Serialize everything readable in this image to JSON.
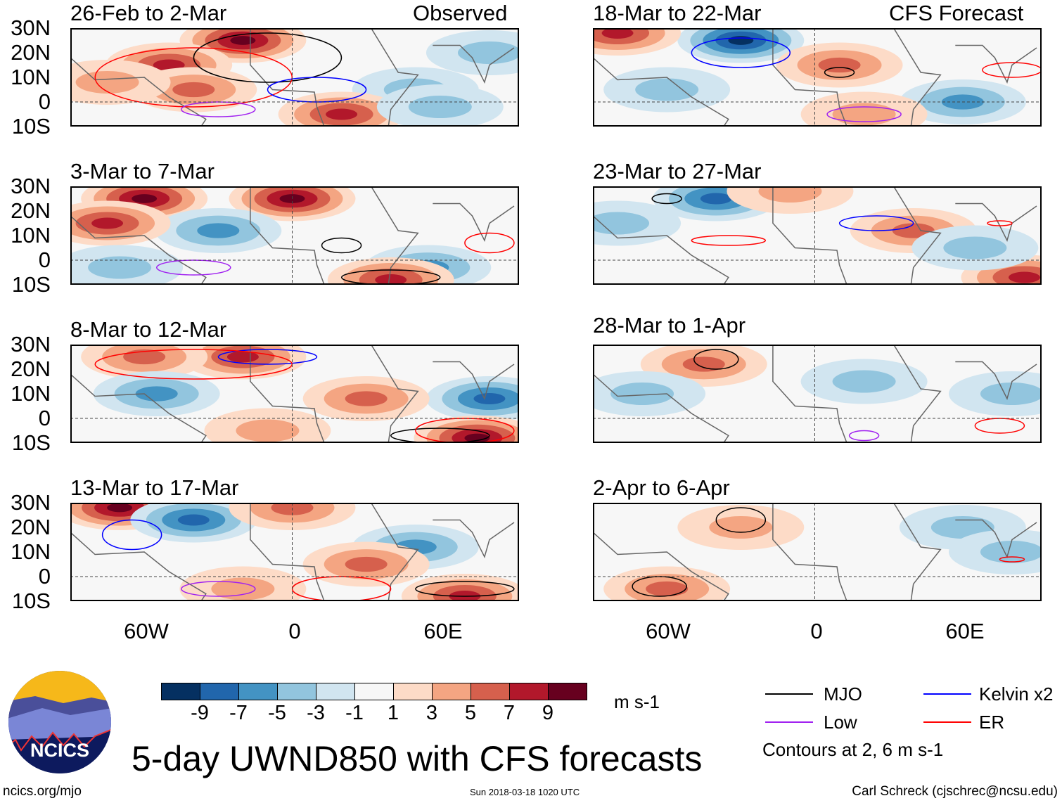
{
  "title": "5-day UWND850 with CFS forecasts",
  "header_left": "Observed",
  "header_right": "CFS Forecast",
  "units": "m s-1",
  "footer": {
    "url": "ncics.org/mjo",
    "timestamp": "Sun 2018-03-18 1020 UTC",
    "author": "Carl Schreck (cjschrec@ncsu.edu)"
  },
  "logo_text": "NCICS",
  "lat_labels": [
    "30N",
    "20N",
    "10N",
    "0",
    "10S"
  ],
  "lon_labels": [
    "60W",
    "0",
    "60E"
  ],
  "colorbar": {
    "labels": [
      "-9",
      "-7",
      "-5",
      "-3",
      "-1",
      "1",
      "3",
      "5",
      "7",
      "9"
    ],
    "colors": [
      "#053061",
      "#2166ac",
      "#4393c3",
      "#92c5de",
      "#d1e5f0",
      "#f7f7f7",
      "#fddbc7",
      "#f4a582",
      "#d6604d",
      "#b2182b",
      "#67001f"
    ]
  },
  "legend": {
    "items": [
      {
        "label": "MJO",
        "color": "#000000"
      },
      {
        "label": "Kelvin x2",
        "color": "#0000ff"
      },
      {
        "label": "Low",
        "color": "#a020f0"
      },
      {
        "label": "ER",
        "color": "#ff0000"
      }
    ],
    "note": "Contours at 2, 6 m s-1"
  },
  "chart_data": {
    "type": "map",
    "lon_range": [
      -90,
      92
    ],
    "lat_range": [
      -10,
      30
    ],
    "panels": [
      {
        "title": "26-Feb to 2-Mar",
        "source": "Observed",
        "features": [
          [
            -20,
            25,
            9
          ],
          [
            -50,
            15,
            7
          ],
          [
            -40,
            5,
            5
          ],
          [
            -75,
            8,
            3
          ],
          [
            50,
            5,
            -3
          ],
          [
            80,
            20,
            -3
          ],
          [
            20,
            -5,
            7
          ],
          [
            60,
            -2,
            -3
          ]
        ],
        "contours": [
          [
            "MJO",
            -10,
            18,
            30,
            10
          ],
          [
            "ER",
            -40,
            10,
            40,
            12
          ],
          [
            "Kelvin x2",
            10,
            5,
            20,
            5
          ],
          [
            "Low",
            -30,
            -3,
            15,
            3
          ]
        ]
      },
      {
        "title": "3-Mar to 7-Mar",
        "source": "Observed",
        "features": [
          [
            -60,
            25,
            9
          ],
          [
            0,
            25,
            9
          ],
          [
            -30,
            12,
            -5
          ],
          [
            -75,
            15,
            7
          ],
          [
            55,
            -3,
            -5
          ],
          [
            40,
            -8,
            7
          ],
          [
            -70,
            -3,
            -3
          ]
        ],
        "contours": [
          [
            "MJO",
            40,
            -7,
            20,
            3
          ],
          [
            "ER",
            80,
            7,
            10,
            4
          ],
          [
            "Low",
            -40,
            -3,
            15,
            3
          ],
          [
            "MJO",
            20,
            6,
            8,
            3
          ]
        ]
      },
      {
        "title": "8-Mar to 12-Mar",
        "source": "Observed",
        "features": [
          [
            -20,
            25,
            7
          ],
          [
            -60,
            25,
            5
          ],
          [
            -55,
            10,
            -5
          ],
          [
            80,
            8,
            -7
          ],
          [
            75,
            -8,
            9
          ],
          [
            30,
            8,
            5
          ],
          [
            -10,
            -5,
            3
          ]
        ],
        "contours": [
          [
            "Kelvin x2",
            -10,
            25,
            20,
            3
          ],
          [
            "ER",
            -40,
            22,
            40,
            6
          ],
          [
            "MJO",
            60,
            -7,
            20,
            3
          ],
          [
            "ER",
            70,
            -5,
            20,
            5
          ]
        ]
      },
      {
        "title": "13-Mar to 17-Mar",
        "source": "Observed",
        "features": [
          [
            -70,
            28,
            9
          ],
          [
            -40,
            23,
            -7
          ],
          [
            0,
            28,
            5
          ],
          [
            70,
            -8,
            7
          ],
          [
            50,
            12,
            -5
          ],
          [
            30,
            5,
            5
          ],
          [
            -20,
            -5,
            3
          ]
        ],
        "contours": [
          [
            "Kelvin x2",
            -65,
            17,
            12,
            6
          ],
          [
            "ER",
            20,
            -5,
            20,
            5
          ],
          [
            "MJO",
            70,
            -5,
            20,
            3
          ],
          [
            "Low",
            -30,
            -5,
            15,
            3
          ]
        ]
      },
      {
        "title": "18-Mar to 22-Mar",
        "source": "CFS Forecast",
        "features": [
          [
            -30,
            25,
            -9
          ],
          [
            10,
            15,
            5
          ],
          [
            -80,
            28,
            7
          ],
          [
            60,
            0,
            -5
          ],
          [
            20,
            -5,
            3
          ],
          [
            -60,
            5,
            -3
          ]
        ],
        "contours": [
          [
            "Kelvin x2",
            -30,
            20,
            20,
            6
          ],
          [
            "MJO",
            10,
            12,
            6,
            2
          ],
          [
            "ER",
            80,
            13,
            12,
            3
          ],
          [
            "Low",
            20,
            -5,
            15,
            3
          ]
        ]
      },
      {
        "title": "23-Mar to 27-Mar",
        "source": "CFS Forecast",
        "features": [
          [
            -40,
            25,
            -7
          ],
          [
            40,
            12,
            5
          ],
          [
            85,
            -7,
            7
          ],
          [
            65,
            5,
            -3
          ],
          [
            -80,
            15,
            -3
          ],
          [
            -10,
            28,
            3
          ]
        ],
        "contours": [
          [
            "MJO",
            -60,
            25,
            6,
            2
          ],
          [
            "Kelvin x2",
            25,
            15,
            15,
            3
          ],
          [
            "ER",
            -35,
            8,
            15,
            2
          ],
          [
            "ER",
            75,
            15,
            5,
            1
          ]
        ]
      },
      {
        "title": "28-Mar to 1-Apr",
        "source": "CFS Forecast",
        "features": [
          [
            -45,
            22,
            5
          ],
          [
            80,
            10,
            -3
          ],
          [
            20,
            15,
            -3
          ],
          [
            -70,
            10,
            -3
          ]
        ],
        "contours": [
          [
            "MJO",
            -40,
            24,
            9,
            4
          ],
          [
            "ER",
            75,
            -3,
            10,
            3
          ],
          [
            "Low",
            20,
            -7,
            6,
            2
          ]
        ]
      },
      {
        "title": "2-Apr to 6-Apr",
        "source": "CFS Forecast",
        "features": [
          [
            -60,
            -5,
            5
          ],
          [
            -30,
            20,
            3
          ],
          [
            60,
            20,
            -3
          ],
          [
            80,
            10,
            -3
          ]
        ],
        "contours": [
          [
            "MJO",
            -30,
            23,
            10,
            5
          ],
          [
            "MJO",
            -63,
            -4,
            11,
            4
          ],
          [
            "ER",
            80,
            7,
            5,
            1
          ]
        ]
      }
    ]
  }
}
